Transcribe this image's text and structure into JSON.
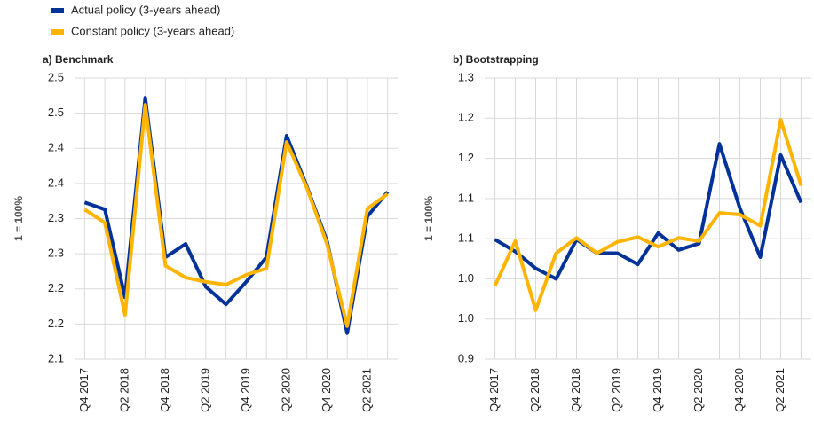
{
  "chart_data": [
    {
      "type": "line",
      "title": "a) Benchmark",
      "y_label": "1 = 100%",
      "categories": [
        "Q4 2017",
        null,
        "Q2 2018",
        null,
        "Q4 2018",
        null,
        "Q2 2019",
        null,
        "Q4 2019",
        null,
        "Q2 2020",
        null,
        "Q4 2020",
        null,
        "Q2 2021",
        null
      ],
      "ylim": [
        2.1,
        2.5
      ],
      "yticks": [
        {
          "value": 2.1,
          "label": "2.1"
        },
        {
          "value": 2.15,
          "label": "2.2"
        },
        {
          "value": 2.2,
          "label": "2.2"
        },
        {
          "value": 2.25,
          "label": "2.3"
        },
        {
          "value": 2.3,
          "label": "2.3"
        },
        {
          "value": 2.35,
          "label": "2.4"
        },
        {
          "value": 2.4,
          "label": "2.4"
        },
        {
          "value": 2.45,
          "label": "2.5"
        },
        {
          "value": 2.5,
          "label": "2.5"
        }
      ],
      "grid": true,
      "series": [
        {
          "name": "Actual policy (3-years ahead)",
          "color": "#003299",
          "values": [
            2.323,
            2.313,
            2.188,
            2.472,
            2.245,
            2.264,
            2.203,
            2.178,
            2.21,
            2.245,
            2.418,
            2.346,
            2.268,
            2.137,
            2.303,
            2.338
          ]
        },
        {
          "name": "Constant policy (3-years ahead)",
          "color": "#ffb400",
          "values": [
            2.313,
            2.294,
            2.163,
            2.462,
            2.233,
            2.216,
            2.21,
            2.206,
            2.22,
            2.229,
            2.409,
            2.344,
            2.264,
            2.147,
            2.314,
            2.335
          ]
        }
      ]
    },
    {
      "type": "line",
      "title": "b) Bootstrapping",
      "y_label": "1 = 100%",
      "categories": [
        "Q4 2017",
        null,
        "Q2 2018",
        null,
        "Q4 2018",
        null,
        "Q2 2019",
        null,
        "Q4 2019",
        null,
        "Q2 2020",
        null,
        "Q4 2020",
        null,
        "Q2 2021",
        null
      ],
      "ylim": [
        0.9,
        1.25
      ],
      "yticks": [
        0.9,
        {
          "value": 0.95,
          "label": "1.0"
        },
        {
          "value": 1.0,
          "label": "1.0"
        },
        {
          "value": 1.05,
          "label": "1.1"
        },
        1.1,
        {
          "value": 1.15,
          "label": "1.2"
        },
        1.2,
        {
          "value": 1.25,
          "label": "1.3"
        }
      ],
      "grid": true,
      "series": [
        {
          "color": "#003299",
          "values": [
            1.049,
            1.034,
            1.013,
            1.0,
            1.049,
            1.032,
            1.032,
            1.018,
            1.057,
            1.036,
            1.044,
            1.168,
            1.088,
            1.027,
            1.154,
            1.095
          ]
        },
        {
          "color": "#ffb400",
          "values": [
            0.991,
            1.047,
            0.961,
            1.032,
            1.051,
            1.032,
            1.046,
            1.052,
            1.04,
            1.051,
            1.047,
            1.082,
            1.08,
            1.066,
            1.198,
            1.116
          ]
        }
      ]
    }
  ]
}
